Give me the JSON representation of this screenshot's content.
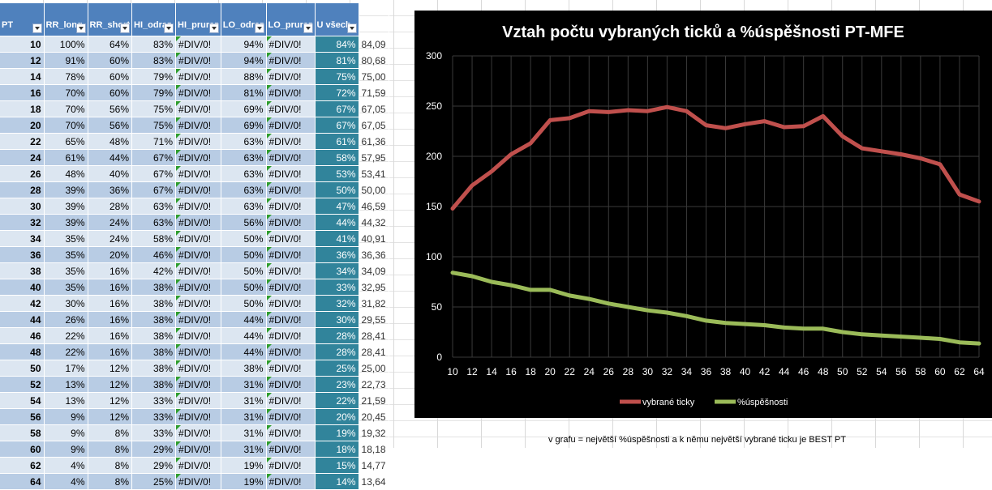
{
  "table": {
    "headers": [
      "PT",
      "RR_long",
      "RR_short",
      "HI_odraz",
      "HI_pruraz",
      "LO_odraz",
      "LO_pruraz",
      "U všech"
    ],
    "rows": [
      {
        "pt": "10",
        "c1": "100%",
        "c2": "64%",
        "c3": "83%",
        "c4": "#DIV/0!",
        "c5": "94%",
        "c6": "#DIV/0!",
        "u": "84%",
        "s": "84,09"
      },
      {
        "pt": "12",
        "c1": "91%",
        "c2": "60%",
        "c3": "83%",
        "c4": "#DIV/0!",
        "c5": "94%",
        "c6": "#DIV/0!",
        "u": "81%",
        "s": "80,68"
      },
      {
        "pt": "14",
        "c1": "78%",
        "c2": "60%",
        "c3": "79%",
        "c4": "#DIV/0!",
        "c5": "88%",
        "c6": "#DIV/0!",
        "u": "75%",
        "s": "75,00"
      },
      {
        "pt": "16",
        "c1": "70%",
        "c2": "60%",
        "c3": "79%",
        "c4": "#DIV/0!",
        "c5": "81%",
        "c6": "#DIV/0!",
        "u": "72%",
        "s": "71,59"
      },
      {
        "pt": "18",
        "c1": "70%",
        "c2": "56%",
        "c3": "75%",
        "c4": "#DIV/0!",
        "c5": "69%",
        "c6": "#DIV/0!",
        "u": "67%",
        "s": "67,05"
      },
      {
        "pt": "20",
        "c1": "70%",
        "c2": "56%",
        "c3": "75%",
        "c4": "#DIV/0!",
        "c5": "69%",
        "c6": "#DIV/0!",
        "u": "67%",
        "s": "67,05"
      },
      {
        "pt": "22",
        "c1": "65%",
        "c2": "48%",
        "c3": "71%",
        "c4": "#DIV/0!",
        "c5": "63%",
        "c6": "#DIV/0!",
        "u": "61%",
        "s": "61,36"
      },
      {
        "pt": "24",
        "c1": "61%",
        "c2": "44%",
        "c3": "67%",
        "c4": "#DIV/0!",
        "c5": "63%",
        "c6": "#DIV/0!",
        "u": "58%",
        "s": "57,95"
      },
      {
        "pt": "26",
        "c1": "48%",
        "c2": "40%",
        "c3": "67%",
        "c4": "#DIV/0!",
        "c5": "63%",
        "c6": "#DIV/0!",
        "u": "53%",
        "s": "53,41"
      },
      {
        "pt": "28",
        "c1": "39%",
        "c2": "36%",
        "c3": "67%",
        "c4": "#DIV/0!",
        "c5": "63%",
        "c6": "#DIV/0!",
        "u": "50%",
        "s": "50,00"
      },
      {
        "pt": "30",
        "c1": "39%",
        "c2": "28%",
        "c3": "63%",
        "c4": "#DIV/0!",
        "c5": "63%",
        "c6": "#DIV/0!",
        "u": "47%",
        "s": "46,59"
      },
      {
        "pt": "32",
        "c1": "39%",
        "c2": "24%",
        "c3": "63%",
        "c4": "#DIV/0!",
        "c5": "56%",
        "c6": "#DIV/0!",
        "u": "44%",
        "s": "44,32"
      },
      {
        "pt": "34",
        "c1": "35%",
        "c2": "24%",
        "c3": "58%",
        "c4": "#DIV/0!",
        "c5": "50%",
        "c6": "#DIV/0!",
        "u": "41%",
        "s": "40,91"
      },
      {
        "pt": "36",
        "c1": "35%",
        "c2": "20%",
        "c3": "46%",
        "c4": "#DIV/0!",
        "c5": "50%",
        "c6": "#DIV/0!",
        "u": "36%",
        "s": "36,36"
      },
      {
        "pt": "38",
        "c1": "35%",
        "c2": "16%",
        "c3": "42%",
        "c4": "#DIV/0!",
        "c5": "50%",
        "c6": "#DIV/0!",
        "u": "34%",
        "s": "34,09"
      },
      {
        "pt": "40",
        "c1": "35%",
        "c2": "16%",
        "c3": "38%",
        "c4": "#DIV/0!",
        "c5": "50%",
        "c6": "#DIV/0!",
        "u": "33%",
        "s": "32,95"
      },
      {
        "pt": "42",
        "c1": "30%",
        "c2": "16%",
        "c3": "38%",
        "c4": "#DIV/0!",
        "c5": "50%",
        "c6": "#DIV/0!",
        "u": "32%",
        "s": "31,82"
      },
      {
        "pt": "44",
        "c1": "26%",
        "c2": "16%",
        "c3": "38%",
        "c4": "#DIV/0!",
        "c5": "44%",
        "c6": "#DIV/0!",
        "u": "30%",
        "s": "29,55"
      },
      {
        "pt": "46",
        "c1": "22%",
        "c2": "16%",
        "c3": "38%",
        "c4": "#DIV/0!",
        "c5": "44%",
        "c6": "#DIV/0!",
        "u": "28%",
        "s": "28,41"
      },
      {
        "pt": "48",
        "c1": "22%",
        "c2": "16%",
        "c3": "38%",
        "c4": "#DIV/0!",
        "c5": "44%",
        "c6": "#DIV/0!",
        "u": "28%",
        "s": "28,41"
      },
      {
        "pt": "50",
        "c1": "17%",
        "c2": "12%",
        "c3": "38%",
        "c4": "#DIV/0!",
        "c5": "38%",
        "c6": "#DIV/0!",
        "u": "25%",
        "s": "25,00"
      },
      {
        "pt": "52",
        "c1": "13%",
        "c2": "12%",
        "c3": "38%",
        "c4": "#DIV/0!",
        "c5": "31%",
        "c6": "#DIV/0!",
        "u": "23%",
        "s": "22,73"
      },
      {
        "pt": "54",
        "c1": "13%",
        "c2": "12%",
        "c3": "33%",
        "c4": "#DIV/0!",
        "c5": "31%",
        "c6": "#DIV/0!",
        "u": "22%",
        "s": "21,59"
      },
      {
        "pt": "56",
        "c1": "9%",
        "c2": "12%",
        "c3": "33%",
        "c4": "#DIV/0!",
        "c5": "31%",
        "c6": "#DIV/0!",
        "u": "20%",
        "s": "20,45"
      },
      {
        "pt": "58",
        "c1": "9%",
        "c2": "8%",
        "c3": "33%",
        "c4": "#DIV/0!",
        "c5": "31%",
        "c6": "#DIV/0!",
        "u": "19%",
        "s": "19,32"
      },
      {
        "pt": "60",
        "c1": "9%",
        "c2": "8%",
        "c3": "29%",
        "c4": "#DIV/0!",
        "c5": "31%",
        "c6": "#DIV/0!",
        "u": "18%",
        "s": "18,18"
      },
      {
        "pt": "62",
        "c1": "4%",
        "c2": "8%",
        "c3": "29%",
        "c4": "#DIV/0!",
        "c5": "19%",
        "c6": "#DIV/0!",
        "u": "15%",
        "s": "14,77"
      },
      {
        "pt": "64",
        "c1": "4%",
        "c2": "8%",
        "c3": "25%",
        "c4": "#DIV/0!",
        "c5": "19%",
        "c6": "#DIV/0!",
        "u": "14%",
        "s": "13,64"
      }
    ]
  },
  "note": "v grafu = největší %úspěšnosti a k němu největší vybrané ticku je BEST PT",
  "colors": {
    "header": "#4f81bd",
    "row_light": "#dce6f1",
    "row_dark": "#b8cce4",
    "u_col": "#31849b",
    "red_line": "#c0504d",
    "green_line": "#9bbb59"
  },
  "chart_data": {
    "type": "line",
    "title": "Vztah počtu vybraných ticků a %úspěšnosti PT-MFE",
    "x": [
      10,
      12,
      14,
      16,
      18,
      20,
      22,
      24,
      26,
      28,
      30,
      32,
      34,
      36,
      38,
      40,
      42,
      44,
      46,
      48,
      50,
      52,
      54,
      56,
      58,
      60,
      62,
      64
    ],
    "ylim": [
      0,
      300
    ],
    "yticks": [
      0,
      50,
      100,
      150,
      200,
      250,
      300
    ],
    "grid": true,
    "legend": "bottom",
    "series": [
      {
        "name": "vybrané ticky",
        "color": "#c0504d",
        "values": [
          148,
          171,
          185,
          202,
          213,
          236,
          238,
          245,
          244,
          246,
          245,
          249,
          245,
          231,
          228,
          232,
          235,
          229,
          230,
          240,
          220,
          208,
          205,
          202,
          198,
          192,
          162,
          155
        ]
      },
      {
        "name": "%úspěšnosti",
        "color": "#9bbb59",
        "values": [
          84.09,
          80.68,
          75.0,
          71.59,
          67.05,
          67.05,
          61.36,
          57.95,
          53.41,
          50.0,
          46.59,
          44.32,
          40.91,
          36.36,
          34.09,
          32.95,
          31.82,
          29.55,
          28.41,
          28.41,
          25.0,
          22.73,
          21.59,
          20.45,
          19.32,
          18.18,
          14.77,
          13.64
        ]
      }
    ]
  }
}
